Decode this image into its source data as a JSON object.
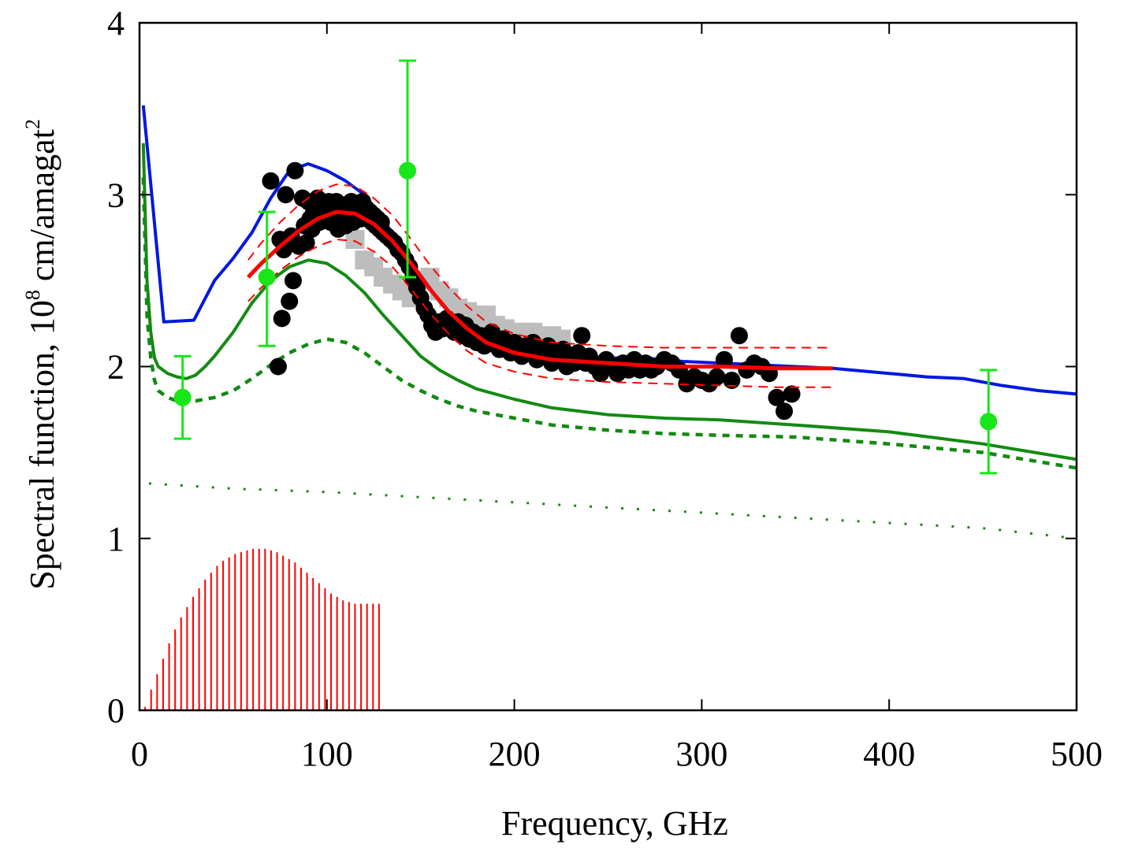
{
  "chart_data": {
    "type": "line",
    "title": "",
    "xlabel": "Frequency, GHz",
    "ylabel": {
      "part1": "Spectral function, 10",
      "exp1": "8",
      "part2": " cm/amagat",
      "exp2": "2"
    },
    "xlim": [
      0,
      500
    ],
    "ylim": [
      0,
      4
    ],
    "xticks": [
      "0",
      "100",
      "200",
      "300",
      "400",
      "500"
    ],
    "yticks": [
      "0",
      "1",
      "2",
      "3",
      "4"
    ],
    "grid": false,
    "legend": "none",
    "colors": {
      "blue": "#0018e0",
      "red": "#ff0000",
      "green": "#138a13",
      "black": "#000000",
      "lime": "#19e619",
      "gray": "#bdbdbd"
    },
    "series": [
      {
        "style": "blue-solid",
        "x": [
          2,
          13,
          29,
          40,
          50,
          60,
          70,
          80,
          90,
          100,
          110,
          120,
          130,
          140,
          150,
          160,
          170,
          180,
          190,
          200,
          215,
          230,
          250,
          270,
          290,
          310,
          330,
          350,
          370,
          400,
          420,
          440,
          460,
          480,
          500
        ],
        "y": [
          3.52,
          2.26,
          2.27,
          2.5,
          2.63,
          2.78,
          2.98,
          3.14,
          3.18,
          3.14,
          3.08,
          3.0,
          2.86,
          2.68,
          2.53,
          2.38,
          2.25,
          2.17,
          2.13,
          2.1,
          2.07,
          2.06,
          2.05,
          2.05,
          2.03,
          2.02,
          2.01,
          2.0,
          1.99,
          1.96,
          1.94,
          1.93,
          1.89,
          1.86,
          1.84
        ]
      },
      {
        "style": "green-solid",
        "x": [
          2,
          4,
          6,
          8,
          10,
          15,
          20,
          25,
          30,
          35,
          40,
          50,
          60,
          70,
          80,
          90,
          100,
          110,
          120,
          130,
          140,
          150,
          160,
          170,
          180,
          200,
          220,
          250,
          280,
          310,
          350,
          400,
          450,
          500
        ],
        "y": [
          3.3,
          2.5,
          2.2,
          2.05,
          2.0,
          1.96,
          1.94,
          1.93,
          1.95,
          2.0,
          2.06,
          2.2,
          2.37,
          2.5,
          2.58,
          2.62,
          2.6,
          2.53,
          2.43,
          2.3,
          2.18,
          2.06,
          1.98,
          1.92,
          1.87,
          1.81,
          1.76,
          1.72,
          1.7,
          1.69,
          1.66,
          1.62,
          1.55,
          1.46
        ]
      },
      {
        "style": "green-dashed",
        "x": [
          2,
          4,
          6,
          8,
          10,
          15,
          20,
          25,
          30,
          40,
          50,
          60,
          70,
          80,
          90,
          100,
          110,
          120,
          130,
          140,
          150,
          160,
          170,
          180,
          200,
          220,
          250,
          280,
          310,
          350,
          400,
          450,
          500
        ],
        "y": [
          3.1,
          2.3,
          2.05,
          1.92,
          1.86,
          1.82,
          1.8,
          1.8,
          1.8,
          1.82,
          1.86,
          1.93,
          2.01,
          2.08,
          2.13,
          2.16,
          2.14,
          2.08,
          2.0,
          1.92,
          1.86,
          1.81,
          1.77,
          1.74,
          1.7,
          1.66,
          1.63,
          1.61,
          1.6,
          1.59,
          1.55,
          1.5,
          1.41
        ]
      },
      {
        "style": "green-dotted",
        "x": [
          5,
          50,
          100,
          150,
          200,
          250,
          300,
          350,
          400,
          450,
          500
        ],
        "y": [
          1.32,
          1.29,
          1.27,
          1.24,
          1.21,
          1.18,
          1.15,
          1.12,
          1.09,
          1.06,
          1.0
        ]
      },
      {
        "style": "red-solid",
        "x": [
          58,
          65,
          75,
          85,
          95,
          105,
          115,
          125,
          135,
          145,
          155,
          165,
          175,
          185,
          200,
          220,
          250,
          280,
          310,
          340,
          370
        ],
        "y": [
          2.52,
          2.6,
          2.7,
          2.79,
          2.86,
          2.9,
          2.89,
          2.83,
          2.73,
          2.6,
          2.45,
          2.32,
          2.22,
          2.14,
          2.08,
          2.04,
          2.02,
          2.0,
          2.0,
          1.99,
          1.99
        ]
      },
      {
        "style": "red-dashed",
        "x": [
          58,
          65,
          75,
          85,
          95,
          105,
          115,
          125,
          135,
          145,
          155,
          165,
          175,
          185,
          200,
          220,
          250,
          280,
          310,
          340,
          370
        ],
        "y": [
          2.62,
          2.72,
          2.84,
          2.94,
          3.02,
          3.06,
          3.05,
          2.98,
          2.88,
          2.74,
          2.59,
          2.46,
          2.35,
          2.26,
          2.19,
          2.14,
          2.12,
          2.11,
          2.11,
          2.11,
          2.11
        ]
      },
      {
        "style": "red-dashed",
        "x": [
          58,
          65,
          75,
          85,
          95,
          105,
          115,
          125,
          135,
          145,
          155,
          165,
          175,
          185,
          200,
          220,
          250,
          280,
          310,
          340,
          370
        ],
        "y": [
          2.38,
          2.46,
          2.56,
          2.64,
          2.7,
          2.74,
          2.73,
          2.67,
          2.58,
          2.45,
          2.31,
          2.19,
          2.09,
          2.02,
          1.97,
          1.93,
          1.91,
          1.9,
          1.89,
          1.88,
          1.88
        ]
      }
    ],
    "black_points": {
      "x": [
        70,
        74,
        75,
        76,
        77,
        78,
        80,
        81,
        82,
        83,
        85,
        87,
        88,
        89,
        90,
        91,
        92,
        93,
        94,
        95,
        96,
        97,
        98,
        99,
        100,
        101,
        102,
        103,
        104,
        105,
        106,
        107,
        108,
        109,
        110,
        111,
        112,
        113,
        114,
        115,
        116,
        117,
        118,
        119,
        120,
        121,
        122,
        123,
        124,
        125,
        126,
        127,
        128,
        129,
        130,
        132,
        134,
        136,
        138,
        140,
        142,
        144,
        146,
        148,
        150,
        152,
        154,
        156,
        158,
        160,
        162,
        164,
        166,
        168,
        170,
        172,
        174,
        176,
        178,
        180,
        182,
        184,
        186,
        188,
        190,
        192,
        194,
        196,
        198,
        200,
        202,
        204,
        206,
        208,
        210,
        212,
        214,
        216,
        218,
        220,
        222,
        224,
        226,
        228,
        230,
        232,
        234,
        236,
        238,
        240,
        243,
        246,
        249,
        252,
        255,
        258,
        261,
        264,
        267,
        270,
        273,
        276,
        280,
        284,
        288,
        292,
        296,
        300,
        304,
        308,
        312,
        316,
        320,
        324,
        328,
        332,
        336,
        340,
        344,
        348
      ],
      "y": [
        3.08,
        2.0,
        2.74,
        2.28,
        2.68,
        3.0,
        2.38,
        2.76,
        2.5,
        3.14,
        2.7,
        2.98,
        2.82,
        2.72,
        2.96,
        2.86,
        2.8,
        2.9,
        2.86,
        2.98,
        2.84,
        2.92,
        2.88,
        2.94,
        2.9,
        2.96,
        2.84,
        2.92,
        2.88,
        2.96,
        2.8,
        2.9,
        2.86,
        2.94,
        2.82,
        2.92,
        2.9,
        2.96,
        2.84,
        2.94,
        2.88,
        2.92,
        2.86,
        2.96,
        2.88,
        2.92,
        2.86,
        2.9,
        2.84,
        2.88,
        2.82,
        2.86,
        2.8,
        2.84,
        2.78,
        2.76,
        2.74,
        2.72,
        2.68,
        2.66,
        2.62,
        2.58,
        2.52,
        2.46,
        2.4,
        2.34,
        2.3,
        2.24,
        2.2,
        2.26,
        2.22,
        2.28,
        2.24,
        2.2,
        2.26,
        2.18,
        2.24,
        2.16,
        2.2,
        2.14,
        2.18,
        2.12,
        2.16,
        2.2,
        2.14,
        2.1,
        2.16,
        2.12,
        2.08,
        2.14,
        2.1,
        2.06,
        2.12,
        2.08,
        2.14,
        2.04,
        2.1,
        2.06,
        2.12,
        2.02,
        2.08,
        2.04,
        2.1,
        2.0,
        2.06,
        2.02,
        2.08,
        2.18,
        2.02,
        2.06,
        2.0,
        1.96,
        2.04,
        2.0,
        1.96,
        2.02,
        1.98,
        2.04,
        1.98,
        2.02,
        1.98,
        2.0,
        2.04,
        2.02,
        1.98,
        1.9,
        1.94,
        1.92,
        1.9,
        1.94,
        2.04,
        1.92,
        2.18,
        1.98,
        2.02,
        2.0,
        1.96,
        1.82,
        1.74,
        1.84
      ]
    },
    "gray_squares": {
      "x": [
        115,
        120,
        125,
        130,
        135,
        140,
        145,
        150,
        155,
        160,
        165,
        170,
        175,
        180,
        185,
        190,
        195,
        200,
        205,
        210,
        215,
        220,
        225
      ],
      "y": [
        2.74,
        2.62,
        2.58,
        2.52,
        2.48,
        2.44,
        2.4,
        2.5,
        2.52,
        2.44,
        2.4,
        2.34,
        2.32,
        2.28,
        2.3,
        2.24,
        2.22,
        2.18,
        2.2,
        2.2,
        2.16,
        2.18,
        2.16
      ]
    },
    "green_points": [
      {
        "x": 23,
        "y": 1.82,
        "ylow": 1.58,
        "yhigh": 2.06
      },
      {
        "x": 68,
        "y": 2.52,
        "ylow": 2.12,
        "yhigh": 2.9
      },
      {
        "x": 143,
        "y": 3.14,
        "ylow": 2.52,
        "yhigh": 3.78
      },
      {
        "x": 453,
        "y": 1.68,
        "ylow": 1.38,
        "yhigh": 1.98
      }
    ],
    "red_impulses": {
      "x_start": 3,
      "x_step": 3.2,
      "y": [
        0.02,
        0.12,
        0.21,
        0.3,
        0.39,
        0.47,
        0.54,
        0.6,
        0.66,
        0.71,
        0.76,
        0.8,
        0.84,
        0.87,
        0.89,
        0.91,
        0.92,
        0.93,
        0.94,
        0.94,
        0.94,
        0.93,
        0.92,
        0.9,
        0.88,
        0.86,
        0.83,
        0.8,
        0.77,
        0.74,
        0.71,
        0.68,
        0.66,
        0.64,
        0.63,
        0.62,
        0.62,
        0.62,
        0.62,
        0.62
      ]
    }
  }
}
